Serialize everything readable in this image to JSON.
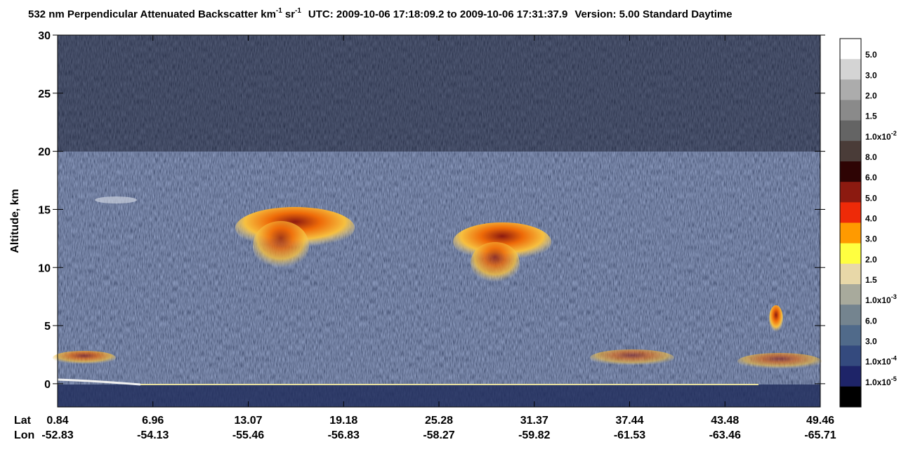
{
  "chart_data": {
    "type": "curtain",
    "title": [
      "532 nm Perpendicular Attenuated Backscatter km",
      "-1",
      "sr",
      "-1",
      "UTC: 2009-10-06 17:18:09.2 to 2009-10-06 17:31:37.9",
      "Version: 5.00 Standard Daytime"
    ],
    "y_label": "Altitude, km",
    "ylim": [
      -2,
      30
    ],
    "yticks": [
      0,
      5,
      10,
      15,
      20,
      25,
      30
    ],
    "x_rows": [
      {
        "name": "Lat",
        "values": [
          0.84,
          6.96,
          13.07,
          19.18,
          25.28,
          31.37,
          37.44,
          43.48,
          49.46
        ]
      },
      {
        "name": "Lon",
        "values": [
          -52.83,
          -54.13,
          -55.46,
          -56.83,
          -58.27,
          -59.82,
          -61.53,
          -63.46,
          -65.71
        ]
      }
    ],
    "colorbar": {
      "colors": [
        "#ffffff",
        "#d4d4d4",
        "#acacac",
        "#8a8a8a",
        "#646464",
        "#4a3c38",
        "#2e0404",
        "#8c1a10",
        "#ee2a08",
        "#ff9a00",
        "#ffff40",
        "#e8d8a8",
        "#a8aa9c",
        "#74848f",
        "#506a8a",
        "#344a7e",
        "#1e2468",
        "#000000"
      ],
      "labels": [
        "5.0",
        "3.0",
        "2.0",
        "1.5",
        {
          "text": "1.0x10",
          "sup": "-2"
        },
        "8.0",
        "6.0",
        "5.0",
        "4.0",
        "3.0",
        "2.0",
        "1.5",
        {
          "text": "1.0x10",
          "sup": "-3"
        },
        "6.0",
        "3.0",
        {
          "text": "1.0x10",
          "sup": "-4"
        },
        {
          "text": "1.0x10",
          "sup": "-5"
        }
      ]
    }
  }
}
